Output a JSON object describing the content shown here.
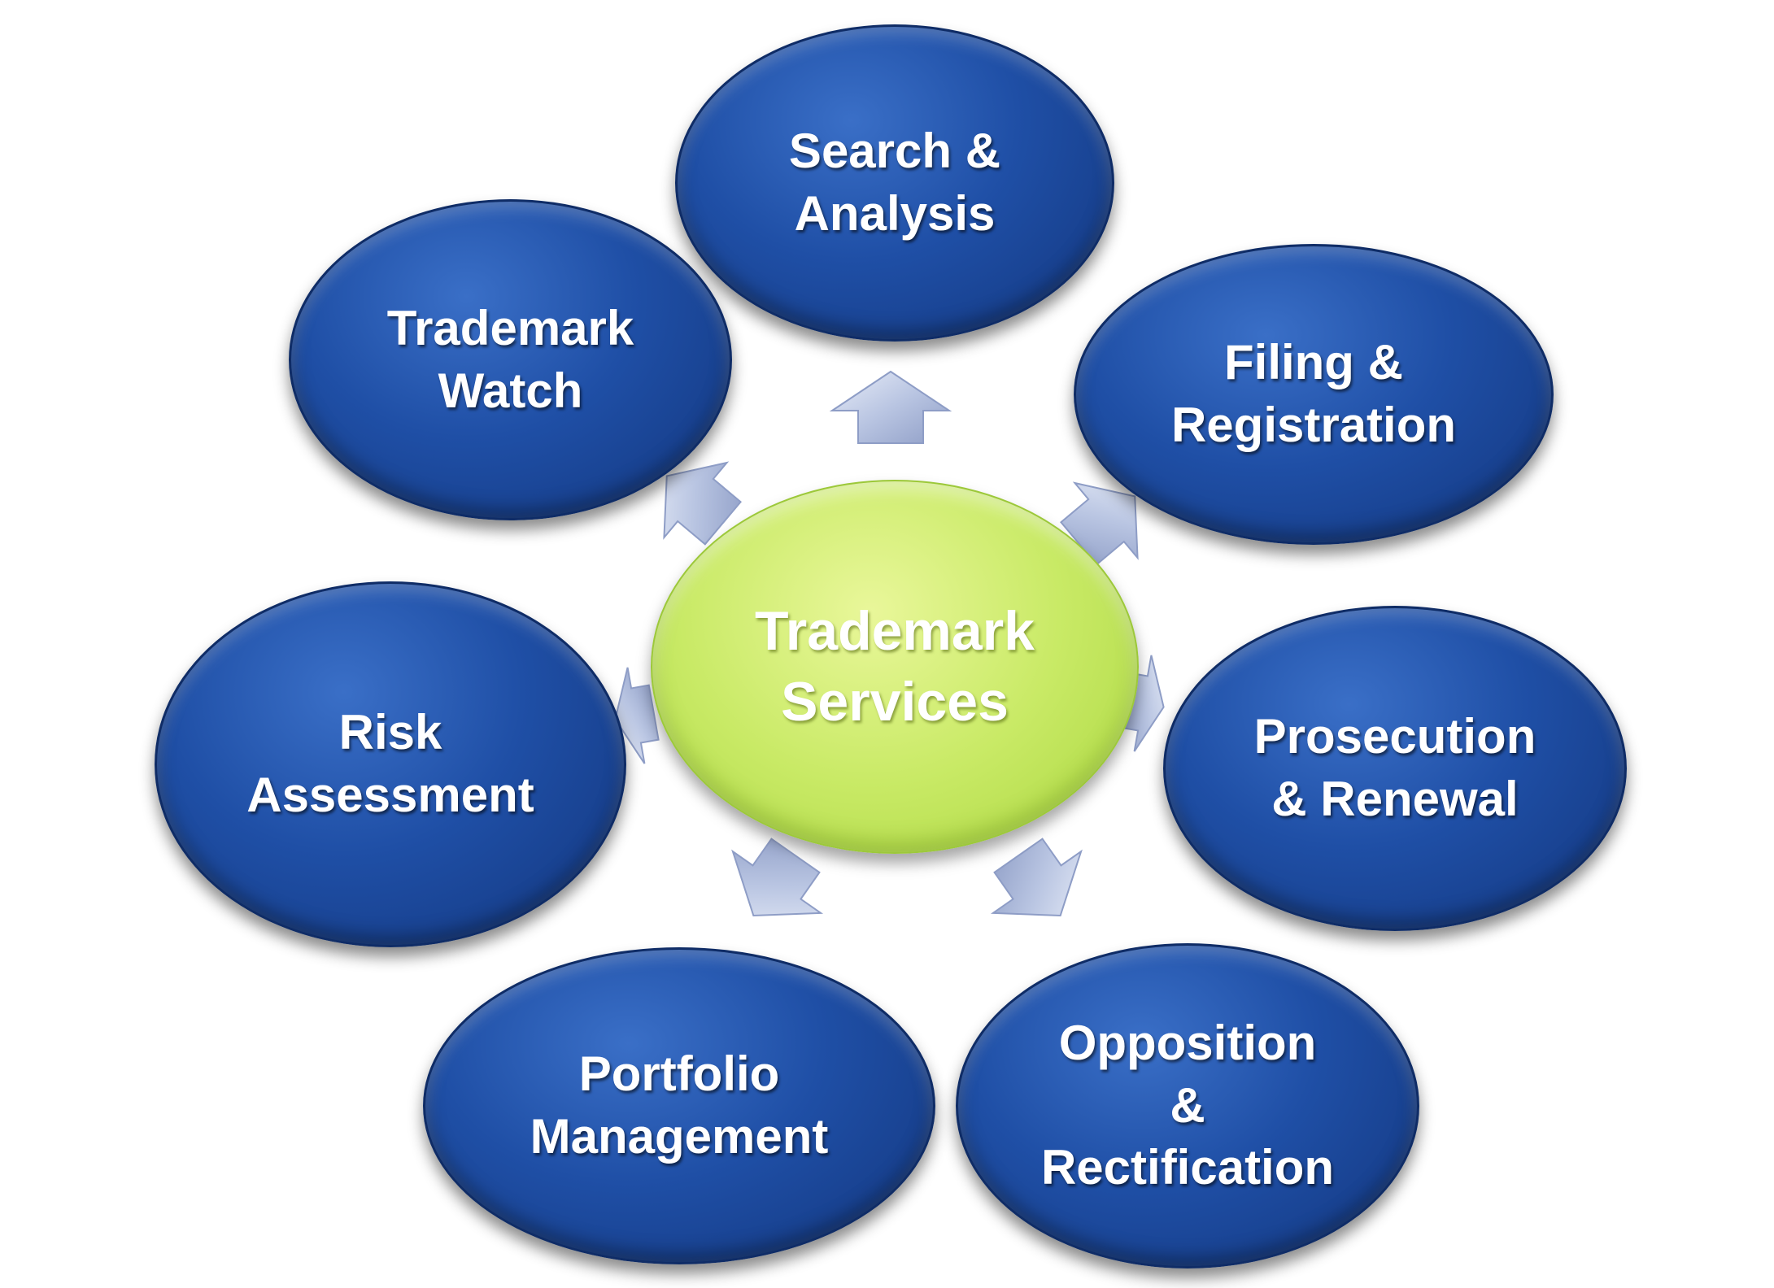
{
  "center": {
    "label": "Trademark\nServices",
    "color": "#c9ea66"
  },
  "services": [
    {
      "id": "search",
      "label": "Search &\nAnalysis"
    },
    {
      "id": "filing",
      "label": "Filing &\nRegistration"
    },
    {
      "id": "prosecution",
      "label": "Prosecution\n& Renewal"
    },
    {
      "id": "opposition",
      "label": "Opposition\n&\nRectification"
    },
    {
      "id": "portfolio",
      "label": "Portfolio\nManagement"
    },
    {
      "id": "risk",
      "label": "Risk\nAssessment"
    },
    {
      "id": "watch",
      "label": "Trademark\nWatch"
    }
  ],
  "colors": {
    "node": "#1f4fa6",
    "arrow": "#c3cde6"
  }
}
